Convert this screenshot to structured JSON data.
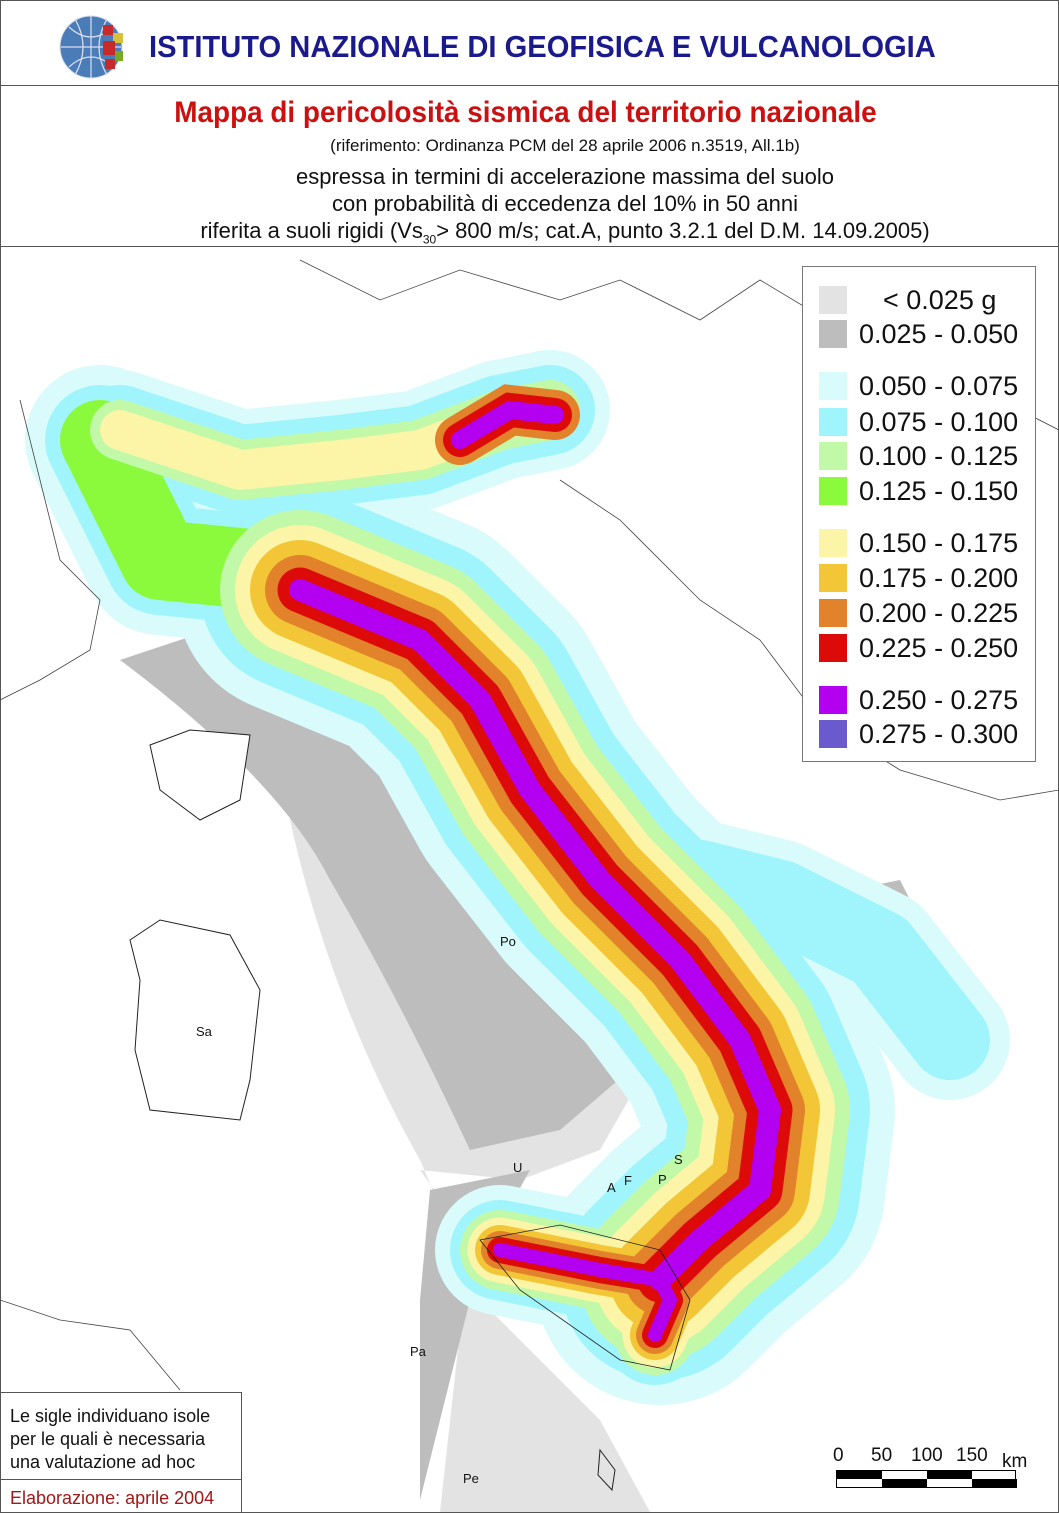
{
  "header": {
    "institute": "ISTITUTO NAZIONALE DI GEOFISICA E VULCANOLOGIA",
    "title": "Mappa di pericolosità sismica del territorio nazionale",
    "reference": "(riferimento: Ordinanza PCM del 28 aprile 2006 n.3519, All.1b)",
    "desc_line1": "espressa in termini di accelerazione massima del suolo",
    "desc_line2": "con probabilità di eccedenza del 10% in 50 anni",
    "desc_line3_pre": "riferita a suoli rigidi (Vs",
    "desc_line3_sub": "30",
    "desc_line3_post": "> 800 m/s; cat.A, punto 3.2.1 del D.M. 14.09.2005)"
  },
  "legend": {
    "items": [
      {
        "label": "< 0.025 g",
        "color": "#e3e3e3"
      },
      {
        "label": "0.025 - 0.050",
        "color": "#bdbdbd"
      },
      {
        "label": "0.050 - 0.075",
        "color": "#d9fbfb"
      },
      {
        "label": "0.075 - 0.100",
        "color": "#9ff5fb"
      },
      {
        "label": "0.100 - 0.125",
        "color": "#c2f9a8"
      },
      {
        "label": "0.125 - 0.150",
        "color": "#8cfa3c"
      },
      {
        "label": "0.150 - 0.175",
        "color": "#fcf4a6"
      },
      {
        "label": "0.175 - 0.200",
        "color": "#f2c637"
      },
      {
        "label": "0.200 - 0.225",
        "color": "#e2822a"
      },
      {
        "label": "0.225 - 0.250",
        "color": "#dd0a0a"
      },
      {
        "label": "0.250 - 0.275",
        "color": "#b400f0"
      },
      {
        "label": "0.275 - 0.300",
        "color": "#6a5acd"
      }
    ]
  },
  "map": {
    "island_labels": [
      "Po",
      "Sa",
      "U",
      "S",
      "A",
      "F",
      "P",
      "Pa",
      "Pe"
    ]
  },
  "note": {
    "text_line1": "Le sigle individuano isole",
    "text_line2": "per le quali è necessaria",
    "text_line3": "una valutazione ad hoc",
    "elaboration": "Elaborazione: aprile 2004"
  },
  "scale_bar": {
    "ticks": [
      "0",
      "50",
      "100",
      "150"
    ],
    "unit": "km"
  }
}
